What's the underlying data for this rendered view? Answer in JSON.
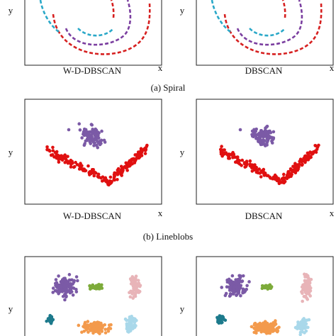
{
  "figure": {
    "rows": [
      {
        "panels": [
          {
            "y_label": "y",
            "x_label": "x",
            "caption": "W-D-DBSCAN"
          },
          {
            "y_label": "y",
            "x_label": "x",
            "caption": "DBSCAN"
          }
        ],
        "caption": "(a) Spiral"
      },
      {
        "panels": [
          {
            "y_label": "y",
            "x_label": "x",
            "caption": "W-D-DBSCAN"
          },
          {
            "y_label": "y",
            "x_label": "x",
            "caption": "DBSCAN"
          }
        ],
        "caption": "(b) Lineblobs"
      },
      {
        "panels": [
          {
            "y_label": "y"
          },
          {
            "y_label": "y"
          }
        ]
      }
    ]
  }
}
